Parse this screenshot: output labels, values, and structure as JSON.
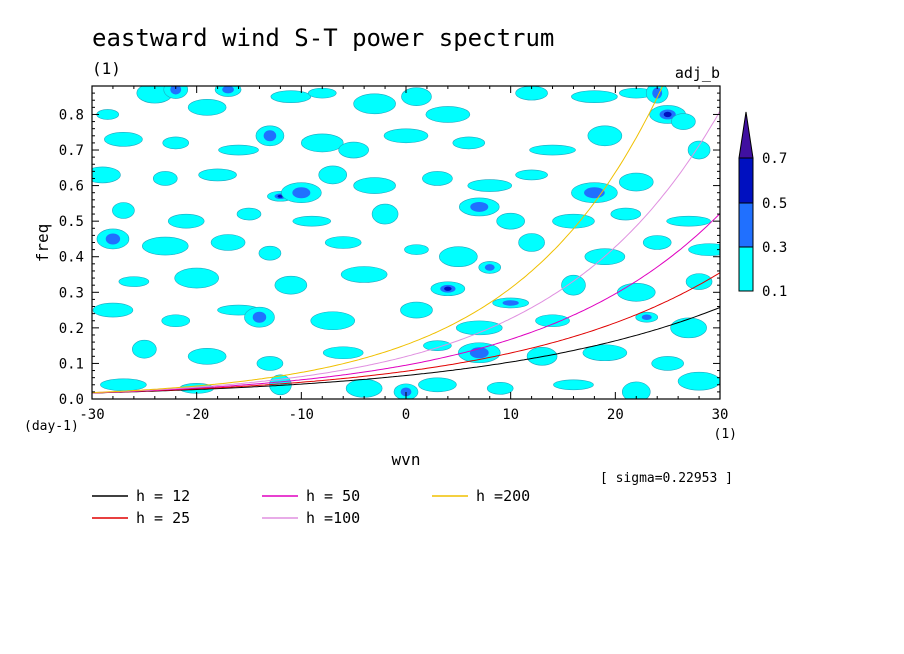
{
  "chart_data": {
    "type": "heatmap",
    "title": "eastward wind S-T power spectrum",
    "subtitle_left": "(1)",
    "subtitle_right": "adj_b",
    "xlabel": "wvn",
    "ylabel": "freq",
    "x_unit": "(1)",
    "y_unit": "(day-1)",
    "xlim": [
      -30,
      30
    ],
    "ylim": [
      0.0,
      0.88
    ],
    "x_ticks": [
      -30,
      -20,
      -10,
      0,
      10,
      20,
      30
    ],
    "x_tick_labels": [
      "-30",
      "-20",
      "-10",
      "0",
      "10",
      "20",
      "30"
    ],
    "y_ticks": [
      0.0,
      0.1,
      0.2,
      0.3,
      0.4,
      0.5,
      0.6,
      0.7,
      0.8
    ],
    "y_tick_labels": [
      "0.0",
      "0.1",
      "0.2",
      "0.3",
      "0.4",
      "0.5",
      "0.6",
      "0.7",
      "0.8"
    ],
    "colorbar": {
      "levels": [
        0.1,
        0.3,
        0.5,
        0.7
      ],
      "level_labels": [
        "0.1",
        "0.3",
        "0.5",
        "0.7"
      ],
      "colors": [
        "#00ffff",
        "#2070ff",
        "#0010c0",
        "#4010a0"
      ]
    },
    "annotation": "[ sigma=0.22953 ]",
    "series": [
      {
        "name": "h = 12",
        "h": 12,
        "color": "#000000"
      },
      {
        "name": "h = 25",
        "h": 25,
        "color": "#e00000"
      },
      {
        "name": "h = 50",
        "h": 50,
        "color": "#e000c0"
      },
      {
        "name": "h =100",
        "h": 100,
        "color": "#e090e0"
      },
      {
        "name": "h =200",
        "h": 200,
        "color": "#f0c000"
      }
    ],
    "blobs": [
      {
        "x": -28.5,
        "y": 0.8,
        "level": 1
      },
      {
        "x": -24,
        "y": 0.86,
        "level": 1
      },
      {
        "x": -22,
        "y": 0.87,
        "level": 2
      },
      {
        "x": -19,
        "y": 0.82,
        "level": 1
      },
      {
        "x": -17,
        "y": 0.87,
        "level": 2
      },
      {
        "x": -11,
        "y": 0.85,
        "level": 1
      },
      {
        "x": -8,
        "y": 0.86,
        "level": 1
      },
      {
        "x": -3,
        "y": 0.83,
        "level": 1
      },
      {
        "x": 1,
        "y": 0.85,
        "level": 1
      },
      {
        "x": 4,
        "y": 0.8,
        "level": 1
      },
      {
        "x": 12,
        "y": 0.86,
        "level": 1
      },
      {
        "x": 18,
        "y": 0.85,
        "level": 1
      },
      {
        "x": 22,
        "y": 0.86,
        "level": 1
      },
      {
        "x": 24,
        "y": 0.86,
        "level": 2
      },
      {
        "x": 25,
        "y": 0.8,
        "level": 3
      },
      {
        "x": 26.5,
        "y": 0.78,
        "level": 1
      },
      {
        "x": -27,
        "y": 0.73,
        "level": 1
      },
      {
        "x": -22,
        "y": 0.72,
        "level": 1
      },
      {
        "x": -16,
        "y": 0.7,
        "level": 1
      },
      {
        "x": -13,
        "y": 0.74,
        "level": 2
      },
      {
        "x": -8,
        "y": 0.72,
        "level": 1
      },
      {
        "x": -5,
        "y": 0.7,
        "level": 1
      },
      {
        "x": 0,
        "y": 0.74,
        "level": 1
      },
      {
        "x": 6,
        "y": 0.72,
        "level": 1
      },
      {
        "x": 14,
        "y": 0.7,
        "level": 1
      },
      {
        "x": 19,
        "y": 0.74,
        "level": 1
      },
      {
        "x": 28,
        "y": 0.7,
        "level": 1
      },
      {
        "x": -29,
        "y": 0.63,
        "level": 1
      },
      {
        "x": -23,
        "y": 0.62,
        "level": 1
      },
      {
        "x": -18,
        "y": 0.63,
        "level": 1
      },
      {
        "x": -12,
        "y": 0.57,
        "level": 3
      },
      {
        "x": -10,
        "y": 0.58,
        "level": 2
      },
      {
        "x": -7,
        "y": 0.63,
        "level": 1
      },
      {
        "x": -3,
        "y": 0.6,
        "level": 1
      },
      {
        "x": 3,
        "y": 0.62,
        "level": 1
      },
      {
        "x": 8,
        "y": 0.6,
        "level": 1
      },
      {
        "x": 12,
        "y": 0.63,
        "level": 1
      },
      {
        "x": 18,
        "y": 0.58,
        "level": 2
      },
      {
        "x": 22,
        "y": 0.61,
        "level": 1
      },
      {
        "x": -27,
        "y": 0.53,
        "level": 1
      },
      {
        "x": -21,
        "y": 0.5,
        "level": 1
      },
      {
        "x": -15,
        "y": 0.52,
        "level": 1
      },
      {
        "x": -9,
        "y": 0.5,
        "level": 1
      },
      {
        "x": -2,
        "y": 0.52,
        "level": 1
      },
      {
        "x": 7,
        "y": 0.54,
        "level": 2
      },
      {
        "x": 10,
        "y": 0.5,
        "level": 1
      },
      {
        "x": 16,
        "y": 0.5,
        "level": 1
      },
      {
        "x": 21,
        "y": 0.52,
        "level": 1
      },
      {
        "x": 27,
        "y": 0.5,
        "level": 1
      },
      {
        "x": -28,
        "y": 0.45,
        "level": 2
      },
      {
        "x": -23,
        "y": 0.43,
        "level": 1
      },
      {
        "x": -17,
        "y": 0.44,
        "level": 1
      },
      {
        "x": -13,
        "y": 0.41,
        "level": 1
      },
      {
        "x": -6,
        "y": 0.44,
        "level": 1
      },
      {
        "x": 1,
        "y": 0.42,
        "level": 1
      },
      {
        "x": 5,
        "y": 0.4,
        "level": 1
      },
      {
        "x": 12,
        "y": 0.44,
        "level": 1
      },
      {
        "x": 19,
        "y": 0.4,
        "level": 1
      },
      {
        "x": 24,
        "y": 0.44,
        "level": 1
      },
      {
        "x": 29,
        "y": 0.42,
        "level": 1
      },
      {
        "x": -26,
        "y": 0.33,
        "level": 1
      },
      {
        "x": -20,
        "y": 0.34,
        "level": 1
      },
      {
        "x": -11,
        "y": 0.32,
        "level": 1
      },
      {
        "x": -4,
        "y": 0.35,
        "level": 1
      },
      {
        "x": 4,
        "y": 0.31,
        "level": 3
      },
      {
        "x": 8,
        "y": 0.37,
        "level": 2
      },
      {
        "x": 10,
        "y": 0.27,
        "level": 2
      },
      {
        "x": 16,
        "y": 0.32,
        "level": 1
      },
      {
        "x": 22,
        "y": 0.3,
        "level": 1
      },
      {
        "x": 28,
        "y": 0.33,
        "level": 1
      },
      {
        "x": -28,
        "y": 0.25,
        "level": 1
      },
      {
        "x": -22,
        "y": 0.22,
        "level": 1
      },
      {
        "x": -16,
        "y": 0.25,
        "level": 1
      },
      {
        "x": -14,
        "y": 0.23,
        "level": 2
      },
      {
        "x": -7,
        "y": 0.22,
        "level": 1
      },
      {
        "x": 1,
        "y": 0.25,
        "level": 1
      },
      {
        "x": 7,
        "y": 0.2,
        "level": 1
      },
      {
        "x": 14,
        "y": 0.22,
        "level": 1
      },
      {
        "x": 23,
        "y": 0.23,
        "level": 2
      },
      {
        "x": 27,
        "y": 0.2,
        "level": 1
      },
      {
        "x": -25,
        "y": 0.14,
        "level": 1
      },
      {
        "x": -19,
        "y": 0.12,
        "level": 1
      },
      {
        "x": -13,
        "y": 0.1,
        "level": 1
      },
      {
        "x": -6,
        "y": 0.13,
        "level": 1
      },
      {
        "x": 3,
        "y": 0.15,
        "level": 1
      },
      {
        "x": 7,
        "y": 0.13,
        "level": 2
      },
      {
        "x": 13,
        "y": 0.12,
        "level": 1
      },
      {
        "x": 19,
        "y": 0.13,
        "level": 1
      },
      {
        "x": 25,
        "y": 0.1,
        "level": 1
      },
      {
        "x": -27,
        "y": 0.04,
        "level": 1
      },
      {
        "x": -20,
        "y": 0.03,
        "level": 1
      },
      {
        "x": -12,
        "y": 0.04,
        "level": 1
      },
      {
        "x": -4,
        "y": 0.03,
        "level": 1
      },
      {
        "x": 0,
        "y": 0.02,
        "level": 2
      },
      {
        "x": 3,
        "y": 0.04,
        "level": 1
      },
      {
        "x": 9,
        "y": 0.03,
        "level": 1
      },
      {
        "x": 16,
        "y": 0.04,
        "level": 1
      },
      {
        "x": 22,
        "y": 0.02,
        "level": 1
      },
      {
        "x": 28,
        "y": 0.05,
        "level": 1
      }
    ]
  }
}
